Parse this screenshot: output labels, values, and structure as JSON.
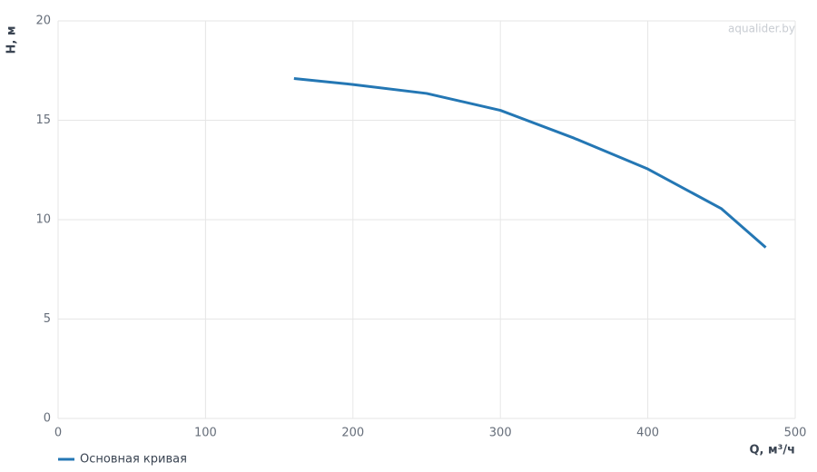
{
  "chart_data": {
    "type": "line",
    "watermark": "aqualider.by",
    "x_label": "Q, м³/ч",
    "y_label": "H, м",
    "x": [
      160,
      200,
      250,
      300,
      350,
      400,
      450,
      480
    ],
    "series": [
      {
        "name": "Основная кривая",
        "color": "#2477b4",
        "values": [
          17.1,
          16.8,
          16.35,
          15.5,
          14.1,
          12.55,
          10.55,
          8.6
        ]
      }
    ],
    "xlim": [
      0,
      500
    ],
    "xticks": [
      0,
      100,
      200,
      300,
      400,
      500
    ],
    "ylim": [
      0,
      20
    ],
    "yticks": [
      0,
      5,
      10,
      15,
      20
    ],
    "grid": true,
    "legend": "bottom-left"
  }
}
